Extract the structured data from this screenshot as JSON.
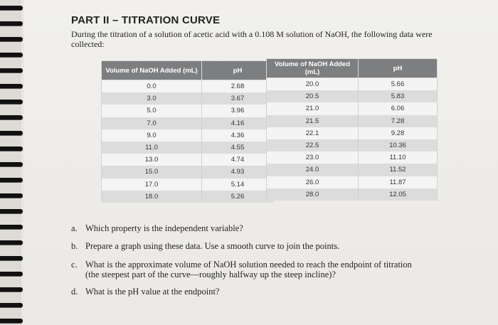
{
  "heading": "PART II – TITRATION CURVE",
  "intro": "During the titration of a solution of acetic acid with a 0.108 M solution of NaOH, the following data were collected:",
  "table_left": {
    "headers": [
      "Volume of NaOH Added (mL)",
      "pH"
    ],
    "rows": [
      [
        "0.0",
        "2.68"
      ],
      [
        "3.0",
        "3.67"
      ],
      [
        "5.0",
        "3.96"
      ],
      [
        "7.0",
        "4.16"
      ],
      [
        "9.0",
        "4.36"
      ],
      [
        "11.0",
        "4.55"
      ],
      [
        "13.0",
        "4.74"
      ],
      [
        "15.0",
        "4.93"
      ],
      [
        "17.0",
        "5.14"
      ],
      [
        "18.0",
        "5.26"
      ]
    ]
  },
  "table_right": {
    "headers": [
      "Volume of NaOH Added (mL)",
      "pH"
    ],
    "rows": [
      [
        "20.0",
        "5.66"
      ],
      [
        "20.5",
        "5.83"
      ],
      [
        "21.0",
        "6.06"
      ],
      [
        "21.5",
        "7.28"
      ],
      [
        "22.1",
        "9.28"
      ],
      [
        "22.5",
        "10.36"
      ],
      [
        "23.0",
        "11.10"
      ],
      [
        "24.0",
        "11.52"
      ],
      [
        "26.0",
        "11.87"
      ],
      [
        "28.0",
        "12.05"
      ]
    ]
  },
  "questions": [
    {
      "label": "a.",
      "text": "Which property is the independent variable?"
    },
    {
      "label": "b.",
      "text": "Prepare a graph using these data. Use a smooth curve to join the points."
    },
    {
      "label": "c.",
      "text": "What is the approximate volume of NaOH solution needed to reach the endpoint of titration",
      "cont": "(the steepest part of the curve—roughly halfway up the steep incline)?"
    },
    {
      "label": "d.",
      "text": "What is the pH value at the endpoint?"
    }
  ]
}
